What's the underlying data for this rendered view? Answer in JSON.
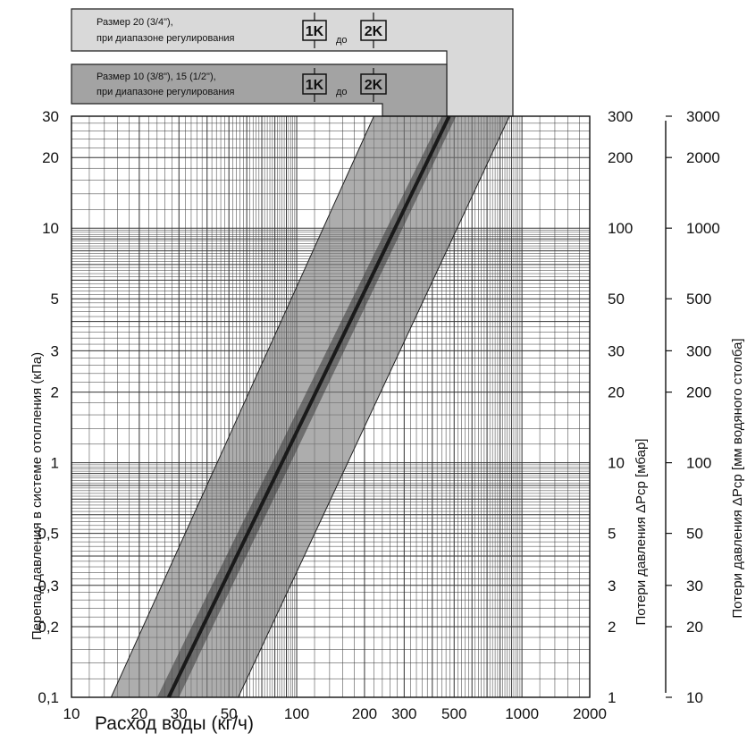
{
  "chart_data": {
    "type": "area",
    "x_scale": "log",
    "y_scale": "log",
    "xlim": [
      10,
      2000
    ],
    "ylim": [
      0.1,
      30
    ],
    "xlabel": "Расход воды  (кг/ч)",
    "ylabel_left": "Перепад  давления  в  системе  отопления  (кПа)",
    "ylabel_right_1": "Потери давления  ΔPcp  [мбар]",
    "ylabel_right_2": "Потери давления  ΔPcp  [мм водяного столба]",
    "x_ticks": [
      "10",
      "20",
      "30",
      "50",
      "100",
      "200",
      "300",
      "500",
      "1000",
      "2000"
    ],
    "x_tick_values": [
      10,
      20,
      30,
      50,
      100,
      200,
      300,
      500,
      1000,
      2000
    ],
    "y_ticks_left": [
      "0,1",
      "0,2",
      "0,3",
      "0,5",
      "1",
      "2",
      "3",
      "5",
      "10",
      "20",
      "30"
    ],
    "y_tick_values": [
      0.1,
      0.2,
      0.3,
      0.5,
      1,
      2,
      3,
      5,
      10,
      20,
      30
    ],
    "y_ticks_mbar": [
      "1",
      "2",
      "3",
      "5",
      "10",
      "20",
      "30",
      "50",
      "100",
      "200",
      "300"
    ],
    "y_ticks_mm": [
      "10",
      "20",
      "30",
      "50",
      "100",
      "200",
      "300",
      "500",
      "1000",
      "2000",
      "3000"
    ],
    "grid": true,
    "series": [
      {
        "name": "Размер 20 (3/4\"), при диапазоне регулирования 1K до 2K",
        "kind": "band",
        "lower": [
          [
            15,
            0.1
          ],
          [
            220,
            30
          ]
        ],
        "upper": [
          [
            55,
            0.1
          ],
          [
            880,
            30
          ]
        ]
      },
      {
        "name": "Размер 10 (3/8\"), 15 (1/2\"), при диапазоне регулирования 1K до 2K",
        "kind": "band",
        "lower": [
          [
            24,
            0.1
          ],
          [
            440,
            30
          ]
        ],
        "upper": [
          [
            30,
            0.1
          ],
          [
            510,
            30
          ]
        ]
      },
      {
        "name": "",
        "kind": "line",
        "points": [
          [
            27,
            0.1
          ],
          [
            475,
            30
          ]
        ]
      }
    ]
  },
  "legend": {
    "box1": {
      "line1": "Размер 20 (3/4\"),",
      "line2": "при диапазоне регулирования",
      "from": "1K",
      "to_word": "до",
      "to": "2K"
    },
    "box2": {
      "line1": "Размер 10 (3/8\"),   15 (1/2\"),",
      "line2": "при диапазоне регулирования",
      "from": "1K",
      "to_word": "до",
      "to": "2K"
    }
  },
  "colors": {
    "band_outer": "#7a7a7a",
    "band_inner": "#3a3a3a",
    "center_line": "#1a1a1a",
    "legend_box1": "#d9d9d9",
    "legend_box2": "#a3a3a3",
    "grid": "#333333"
  }
}
